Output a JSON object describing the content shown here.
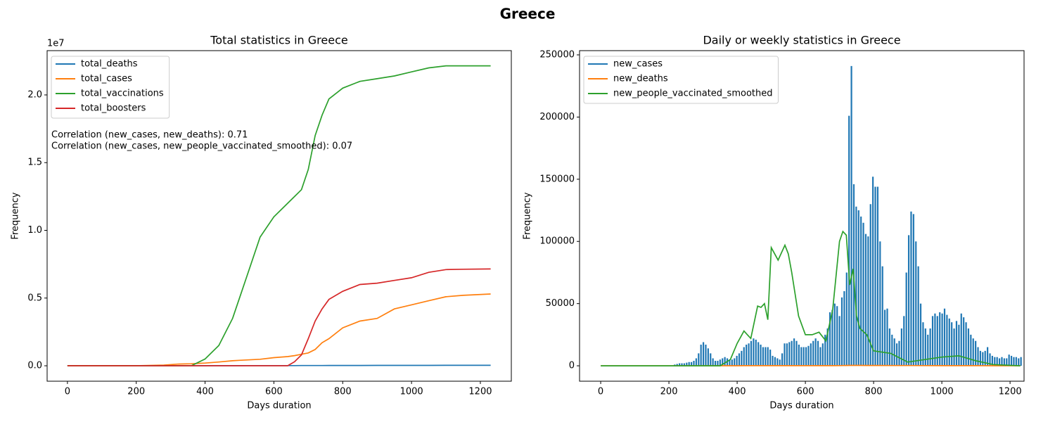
{
  "title": "Greece",
  "chart_data": [
    {
      "type": "line",
      "title": "Total statistics in Greece",
      "x_label": "Days duration",
      "y_label": "Frequency",
      "offset_label": "1e7",
      "xlim": [
        -59,
        1290
      ],
      "ylim": [
        -1140000,
        23270000
      ],
      "xticks": [
        0,
        200,
        400,
        600,
        800,
        1000,
        1200
      ],
      "yticks": [
        {
          "value": 0,
          "label": "0.0"
        },
        {
          "value": 5000000,
          "label": "0.5"
        },
        {
          "value": 10000000,
          "label": "1.0"
        },
        {
          "value": 15000000,
          "label": "1.5"
        },
        {
          "value": 20000000,
          "label": "2.0"
        }
      ],
      "legend": "upper left",
      "annotations": [
        "Correlation (new_cases, new_deaths): 0.71",
        "Correlation (new_cases, new_people_vaccinated_smoothed): 0.07"
      ],
      "x": [
        0,
        100,
        200,
        280,
        320,
        360,
        400,
        440,
        480,
        500,
        520,
        560,
        600,
        640,
        660,
        680,
        700,
        720,
        740,
        760,
        800,
        850,
        900,
        950,
        1000,
        1050,
        1100,
        1150,
        1230
      ],
      "series": [
        {
          "name": "total_deaths",
          "color": "#1f77b4",
          "values": [
            0,
            10,
            100,
            600,
            1500,
            2500,
            4500,
            6000,
            8500,
            10000,
            11000,
            12000,
            13000,
            14500,
            15500,
            16500,
            18000,
            19500,
            20500,
            21500,
            23000,
            25000,
            27000,
            28500,
            29500,
            30500,
            31500,
            32500,
            33000
          ]
        },
        {
          "name": "total_cases",
          "color": "#ff7f0e",
          "values": [
            0,
            1000,
            5000,
            50000,
            120000,
            150000,
            200000,
            280000,
            370000,
            400000,
            430000,
            480000,
            600000,
            680000,
            750000,
            850000,
            950000,
            1200000,
            1700000,
            2000000,
            2800000,
            3300000,
            3500000,
            4200000,
            4500000,
            4800000,
            5100000,
            5200000,
            5300000
          ]
        },
        {
          "name": "total_vaccinations",
          "color": "#2ca02c",
          "values": [
            0,
            0,
            0,
            0,
            0,
            0,
            500000,
            1500000,
            3500000,
            5000000,
            6500000,
            9500000,
            11000000,
            12000000,
            12500000,
            13000000,
            14500000,
            17000000,
            18500000,
            19700000,
            20500000,
            21000000,
            21200000,
            21400000,
            21700000,
            22000000,
            22150000,
            22150000,
            22150000
          ]
        },
        {
          "name": "total_boosters",
          "color": "#d62728",
          "values": [
            0,
            0,
            0,
            0,
            0,
            0,
            0,
            0,
            0,
            0,
            0,
            0,
            0,
            0,
            300000,
            800000,
            2000000,
            3300000,
            4200000,
            4900000,
            5500000,
            6000000,
            6100000,
            6300000,
            6500000,
            6900000,
            7100000,
            7130000,
            7150000
          ]
        }
      ]
    },
    {
      "type": "line",
      "title": "Daily or weekly statistics in Greece",
      "x_label": "Days duration",
      "y_label": "Frequency",
      "xlim": [
        -62,
        1241
      ],
      "ylim": [
        -12400,
        253400
      ],
      "xticks": [
        0,
        200,
        400,
        600,
        800,
        1000,
        1200
      ],
      "yticks": [
        0,
        50000,
        100000,
        150000,
        200000,
        250000
      ],
      "legend": "upper left",
      "x": [
        0,
        100,
        200,
        300,
        350,
        380,
        400,
        420,
        430,
        440,
        460,
        470,
        480,
        490,
        500,
        520,
        540,
        550,
        560,
        580,
        600,
        620,
        640,
        660,
        680,
        700,
        710,
        720,
        730,
        740,
        750,
        760,
        780,
        800,
        850,
        900,
        950,
        1000,
        1050,
        1100,
        1150,
        1230
      ],
      "series": [
        {
          "name": "new_cases",
          "color": "#1f77b4",
          "style": "spikes",
          "x": [
            217,
            224,
            231,
            238,
            245,
            252,
            259,
            266,
            273,
            280,
            287,
            294,
            301,
            308,
            315,
            322,
            329,
            336,
            343,
            350,
            357,
            364,
            371,
            378,
            385,
            392,
            399,
            406,
            413,
            420,
            427,
            434,
            441,
            448,
            455,
            462,
            469,
            476,
            483,
            490,
            497,
            504,
            511,
            518,
            525,
            532,
            539,
            546,
            553,
            560,
            567,
            574,
            581,
            588,
            595,
            602,
            609,
            616,
            623,
            630,
            637,
            644,
            651,
            658,
            665,
            672,
            679,
            686,
            693,
            700,
            707,
            714,
            721,
            728,
            735,
            742,
            749,
            756,
            763,
            770,
            777,
            784,
            791,
            798,
            805,
            812,
            819,
            826,
            833,
            840,
            847,
            854,
            861,
            868,
            875,
            882,
            889,
            896,
            903,
            910,
            917,
            924,
            931,
            938,
            945,
            952,
            959,
            966,
            973,
            980,
            987,
            994,
            1001,
            1008,
            1015,
            1022,
            1029,
            1036,
            1043,
            1050,
            1057,
            1064,
            1071,
            1078,
            1085,
            1092,
            1099,
            1106,
            1113,
            1120,
            1127,
            1134,
            1141,
            1148,
            1155,
            1162,
            1169,
            1176,
            1183,
            1190,
            1197,
            1204,
            1211,
            1218,
            1225,
            1232
          ],
          "values": [
            1000,
            1500,
            2000,
            2000,
            2000,
            2500,
            3000,
            3000,
            4000,
            6000,
            10000,
            17000,
            19000,
            17000,
            14000,
            10000,
            6000,
            4000,
            4000,
            5000,
            6000,
            7000,
            6000,
            5000,
            5000,
            6000,
            8000,
            10000,
            12000,
            15000,
            17000,
            18000,
            20000,
            22000,
            21000,
            19000,
            17000,
            15000,
            15000,
            15000,
            13000,
            8000,
            7000,
            6000,
            5000,
            10000,
            18000,
            18000,
            19000,
            20000,
            22000,
            20000,
            17000,
            15000,
            15000,
            15000,
            16000,
            18000,
            20000,
            22000,
            20000,
            15000,
            18000,
            25000,
            30000,
            43000,
            45000,
            50000,
            48000,
            40000,
            55000,
            60000,
            75000,
            201000,
            241000,
            146000,
            128000,
            125000,
            120000,
            115000,
            106000,
            104000,
            130000,
            152000,
            144000,
            144000,
            100000,
            80000,
            45000,
            46000,
            30000,
            25000,
            22000,
            18000,
            20000,
            30000,
            40000,
            75000,
            105000,
            124000,
            122000,
            100000,
            80000,
            50000,
            35000,
            30000,
            25000,
            30000,
            40000,
            42000,
            40000,
            43000,
            42000,
            46000,
            41000,
            38000,
            35000,
            30000,
            36000,
            33000,
            42000,
            39000,
            35000,
            30000,
            25000,
            22000,
            20000,
            15000,
            12000,
            11000,
            12000,
            15000,
            10000,
            8000,
            7000,
            7000,
            6000,
            7000,
            6000,
            6000,
            9000,
            8000,
            7000,
            7000,
            6000,
            7000
          ]
        },
        {
          "name": "new_deaths",
          "color": "#ff7f0e",
          "values": [
            0,
            0,
            0,
            20,
            40,
            50,
            60,
            70,
            70,
            80,
            90,
            90,
            100,
            100,
            100,
            100,
            100,
            100,
            100,
            100,
            100,
            100,
            100,
            100,
            100,
            150,
            200,
            250,
            300,
            350,
            300,
            300,
            250,
            250,
            200,
            200,
            150,
            100,
            100,
            80,
            60,
            50
          ]
        },
        {
          "name": "new_people_vaccinated_smoothed",
          "color": "#2ca02c",
          "values": [
            0,
            0,
            0,
            0,
            0,
            5000,
            18000,
            28000,
            25000,
            22000,
            48000,
            47000,
            50000,
            37000,
            95000,
            85000,
            97000,
            90000,
            75000,
            40000,
            25000,
            25000,
            27000,
            20000,
            45000,
            100000,
            108000,
            105000,
            65000,
            78000,
            40000,
            30000,
            25000,
            12000,
            10000,
            3000,
            5000,
            7000,
            8000,
            4000,
            1000,
            0
          ]
        }
      ]
    }
  ]
}
